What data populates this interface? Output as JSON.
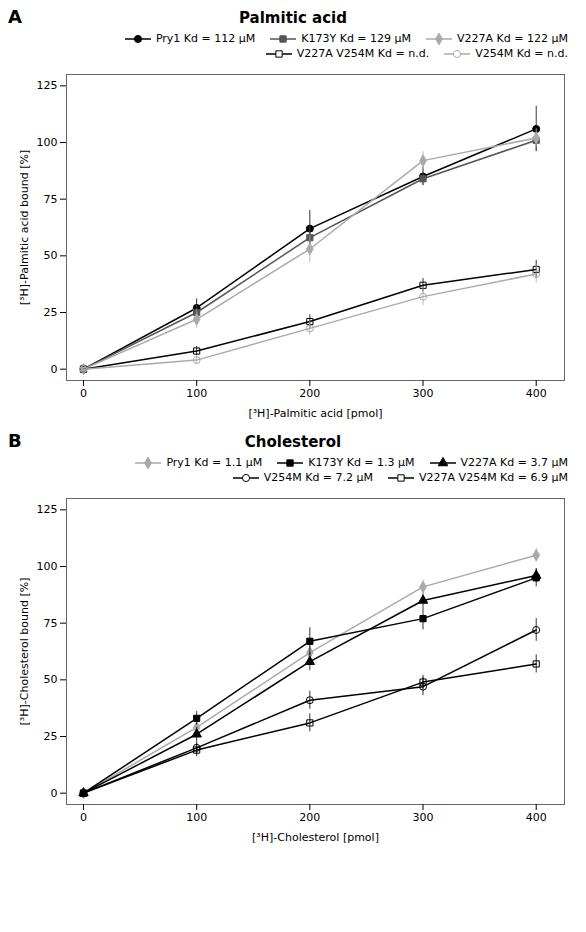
{
  "chart_data": [
    {
      "type": "line",
      "title": "Palmitic acid",
      "annotations": [
        "A"
      ],
      "xlabel": "[³H]-Palmitic acid [pmol]",
      "ylabel": "[³H]-Palmitic acid bound [%]",
      "x": [
        0,
        100,
        200,
        300,
        400
      ],
      "series": [
        {
          "name": "Pry1 Kd = 112 μM",
          "color": "#000000",
          "marker": "circle",
          "values": [
            0,
            27,
            62,
            85,
            106
          ],
          "yerr": [
            0,
            4,
            8,
            4,
            10
          ]
        },
        {
          "name": "K173Y Kd = 129 μM",
          "color": "#555555",
          "marker": "square",
          "values": [
            0,
            25,
            58,
            84,
            101
          ],
          "yerr": [
            0,
            3,
            5,
            3,
            5
          ]
        },
        {
          "name": "V227A Kd = 122 μM",
          "color": "#aaaaaa",
          "marker": "diamond",
          "values": [
            0,
            22,
            53,
            92,
            102
          ],
          "yerr": [
            0,
            4,
            6,
            4,
            4
          ]
        },
        {
          "name": "V227A V254M Kd = n.d.",
          "color": "#000000",
          "marker": "square-open",
          "values": [
            0,
            8,
            21,
            37,
            44
          ],
          "yerr": [
            0,
            2,
            3,
            3,
            4
          ]
        },
        {
          "name": "V254M Kd = n.d.",
          "color": "#aaaaaa",
          "marker": "circle-open",
          "values": [
            0,
            4,
            18,
            32,
            42
          ],
          "yerr": [
            0,
            2,
            3,
            4,
            4
          ]
        }
      ],
      "xlim": [
        -15,
        425
      ],
      "ylim": [
        -5,
        130
      ],
      "xticks": [
        0,
        100,
        200,
        300,
        400
      ],
      "yticks": [
        0,
        25,
        50,
        75,
        100,
        125
      ],
      "legend": "upper right",
      "grid": false
    },
    {
      "type": "line",
      "title": "Cholesterol",
      "annotations": [
        "B"
      ],
      "xlabel": "[³H]-Cholesterol [pmol]",
      "ylabel": "[³H]-Cholesterol bound [%]",
      "x": [
        0,
        100,
        200,
        300,
        400
      ],
      "series": [
        {
          "name": "Pry1 Kd = 1.1 μM",
          "color": "#aaaaaa",
          "marker": "diamond",
          "values": [
            0,
            29,
            62,
            91,
            105
          ],
          "yerr": [
            0,
            3,
            4,
            3,
            3
          ]
        },
        {
          "name": "K173Y Kd = 1.3 μM",
          "color": "#000000",
          "marker": "square",
          "values": [
            0,
            33,
            67,
            77,
            95
          ],
          "yerr": [
            0,
            3,
            6,
            5,
            4
          ]
        },
        {
          "name": "V227A Kd = 3.7 μM",
          "color": "#000000",
          "marker": "triangle",
          "values": [
            0,
            26,
            58,
            85,
            96
          ],
          "yerr": [
            0,
            3,
            4,
            3,
            3
          ]
        },
        {
          "name": "V254M Kd = 7.2 μM",
          "color": "#000000",
          "marker": "circle-open",
          "values": [
            0,
            20,
            41,
            47,
            72
          ],
          "yerr": [
            0,
            3,
            4,
            4,
            5
          ]
        },
        {
          "name": "V227A V254M Kd = 6.9 μM",
          "color": "#000000",
          "marker": "square-open",
          "values": [
            0,
            19,
            31,
            49,
            57
          ],
          "yerr": [
            0,
            3,
            4,
            3,
            4
          ]
        }
      ],
      "xlim": [
        -15,
        425
      ],
      "ylim": [
        -5,
        130
      ],
      "xticks": [
        0,
        100,
        200,
        300,
        400
      ],
      "yticks": [
        0,
        25,
        50,
        75,
        100,
        125
      ],
      "legend": "upper right",
      "grid": false
    }
  ]
}
